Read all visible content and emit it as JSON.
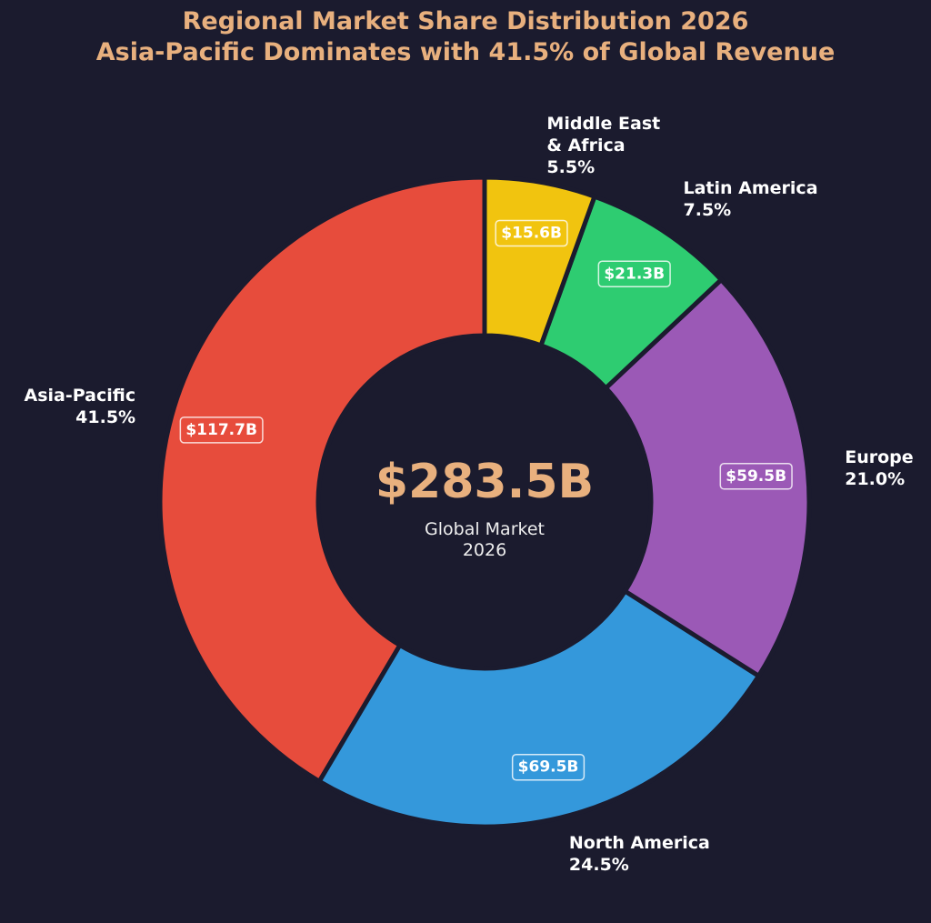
{
  "chart_data": {
    "type": "donut",
    "title": "Regional Market Share Distribution 2026",
    "subtitle": "Asia-Pacific Dominates with 41.5% of Global Revenue",
    "categories": [
      "Asia-Pacific",
      "North America",
      "Europe",
      "Latin America",
      "Middle East\n& Africa"
    ],
    "values": [
      41.5,
      24.5,
      21.0,
      7.5,
      5.5
    ],
    "value_labels": [
      "41.5%",
      "24.5%",
      "21.0%",
      "7.5%",
      "5.5%"
    ],
    "colors": [
      "#e74c3c",
      "#3498db",
      "#9b59b6",
      "#2ecc71",
      "#f1c40f"
    ],
    "revenue": [
      117.7,
      69.5,
      59.5,
      21.3,
      15.6
    ],
    "revenue_labels": [
      "$117.7B",
      "$69.5B",
      "$59.5B",
      "$21.3B",
      "$15.6B"
    ],
    "total": 283.5,
    "total_label": "$283.5B",
    "center_text": "Global Market\n2026"
  }
}
